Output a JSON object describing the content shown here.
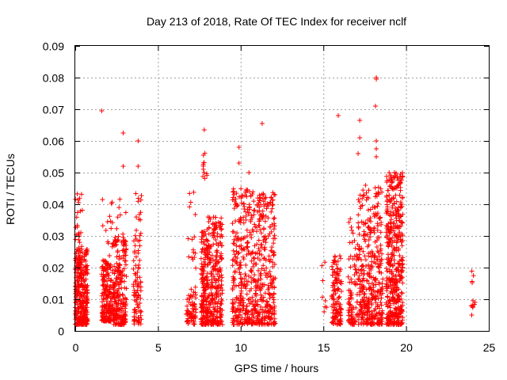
{
  "chart_data": {
    "type": "scatter",
    "title": "Day 213 of 2018, Rate Of TEC Index for receiver nclf",
    "xlabel": "GPS time / hours",
    "ylabel": "ROTI / TECUs",
    "xlim": [
      0,
      25
    ],
    "ylim": [
      0,
      0.09
    ],
    "x_ticks": [
      "0",
      "5",
      "10",
      "15",
      "20",
      "25"
    ],
    "y_ticks": [
      "0",
      "0.01",
      "0.02",
      "0.03",
      "0.04",
      "0.05",
      "0.06",
      "0.07",
      "0.08",
      "0.09"
    ],
    "grid": true,
    "marker": "plus",
    "marker_color": "#ff0000",
    "series": [
      {
        "name": "ROTI",
        "clusters": [
          {
            "x": [
              0.0,
              0.75
            ],
            "y": [
              0.002,
              0.026
            ],
            "n": 300
          },
          {
            "x": [
              0.0,
              0.45
            ],
            "y": [
              0.02,
              0.044
            ],
            "n": 40
          },
          {
            "x": [
              1.6,
              2.3
            ],
            "y": [
              0.003,
              0.022
            ],
            "n": 180
          },
          {
            "x": [
              1.6,
              2.3
            ],
            "y": [
              0.02,
              0.042
            ],
            "n": 25
          },
          {
            "x": [
              2.3,
              3.1
            ],
            "y": [
              0.002,
              0.03
            ],
            "n": 220
          },
          {
            "x": [
              2.3,
              3.1
            ],
            "y": [
              0.028,
              0.042
            ],
            "n": 15
          },
          {
            "x": [
              3.5,
              4.0
            ],
            "y": [
              0.002,
              0.032
            ],
            "n": 90
          },
          {
            "x": [
              3.6,
              4.0
            ],
            "y": [
              0.035,
              0.044
            ],
            "n": 10
          },
          {
            "x": [
              6.7,
              7.3
            ],
            "y": [
              0.002,
              0.012
            ],
            "n": 60
          },
          {
            "x": [
              6.8,
              7.3
            ],
            "y": [
              0.012,
              0.044
            ],
            "n": 20
          },
          {
            "x": [
              7.6,
              8.0
            ],
            "y": [
              0.002,
              0.032
            ],
            "n": 160
          },
          {
            "x": [
              7.7,
              8.0
            ],
            "y": [
              0.048,
              0.057
            ],
            "n": 12
          },
          {
            "x": [
              8.0,
              8.9
            ],
            "y": [
              0.002,
              0.036
            ],
            "n": 260
          },
          {
            "x": [
              9.5,
              11.0
            ],
            "y": [
              0.002,
              0.045
            ],
            "n": 340
          },
          {
            "x": [
              11.0,
              12.1
            ],
            "y": [
              0.002,
              0.044
            ],
            "n": 260
          },
          {
            "x": [
              14.9,
              15.2
            ],
            "y": [
              0.006,
              0.023
            ],
            "n": 8
          },
          {
            "x": [
              15.5,
              16.1
            ],
            "y": [
              0.002,
              0.024
            ],
            "n": 120
          },
          {
            "x": [
              16.5,
              17.1
            ],
            "y": [
              0.002,
              0.036
            ],
            "n": 90
          },
          {
            "x": [
              17.1,
              18.6
            ],
            "y": [
              0.002,
              0.046
            ],
            "n": 380
          },
          {
            "x": [
              18.8,
              19.8
            ],
            "y": [
              0.002,
              0.05
            ],
            "n": 450
          },
          {
            "x": [
              23.9,
              24.2
            ],
            "y": [
              0.005,
              0.019
            ],
            "n": 12
          }
        ],
        "outliers": [
          {
            "x": 1.6,
            "y": 0.0695
          },
          {
            "x": 2.9,
            "y": 0.0625
          },
          {
            "x": 2.9,
            "y": 0.052
          },
          {
            "x": 3.8,
            "y": 0.06
          },
          {
            "x": 3.8,
            "y": 0.052
          },
          {
            "x": 7.8,
            "y": 0.0635
          },
          {
            "x": 9.9,
            "y": 0.058
          },
          {
            "x": 9.9,
            "y": 0.053
          },
          {
            "x": 10.5,
            "y": 0.05
          },
          {
            "x": 11.3,
            "y": 0.0655
          },
          {
            "x": 15.9,
            "y": 0.068
          },
          {
            "x": 17.2,
            "y": 0.0665
          },
          {
            "x": 17.2,
            "y": 0.061
          },
          {
            "x": 17.1,
            "y": 0.056
          },
          {
            "x": 18.2,
            "y": 0.08
          },
          {
            "x": 18.2,
            "y": 0.0795
          },
          {
            "x": 18.15,
            "y": 0.071
          },
          {
            "x": 18.2,
            "y": 0.06
          },
          {
            "x": 18.2,
            "y": 0.0575
          },
          {
            "x": 18.2,
            "y": 0.055
          },
          {
            "x": 19.3,
            "y": 0.05
          }
        ]
      }
    ]
  }
}
